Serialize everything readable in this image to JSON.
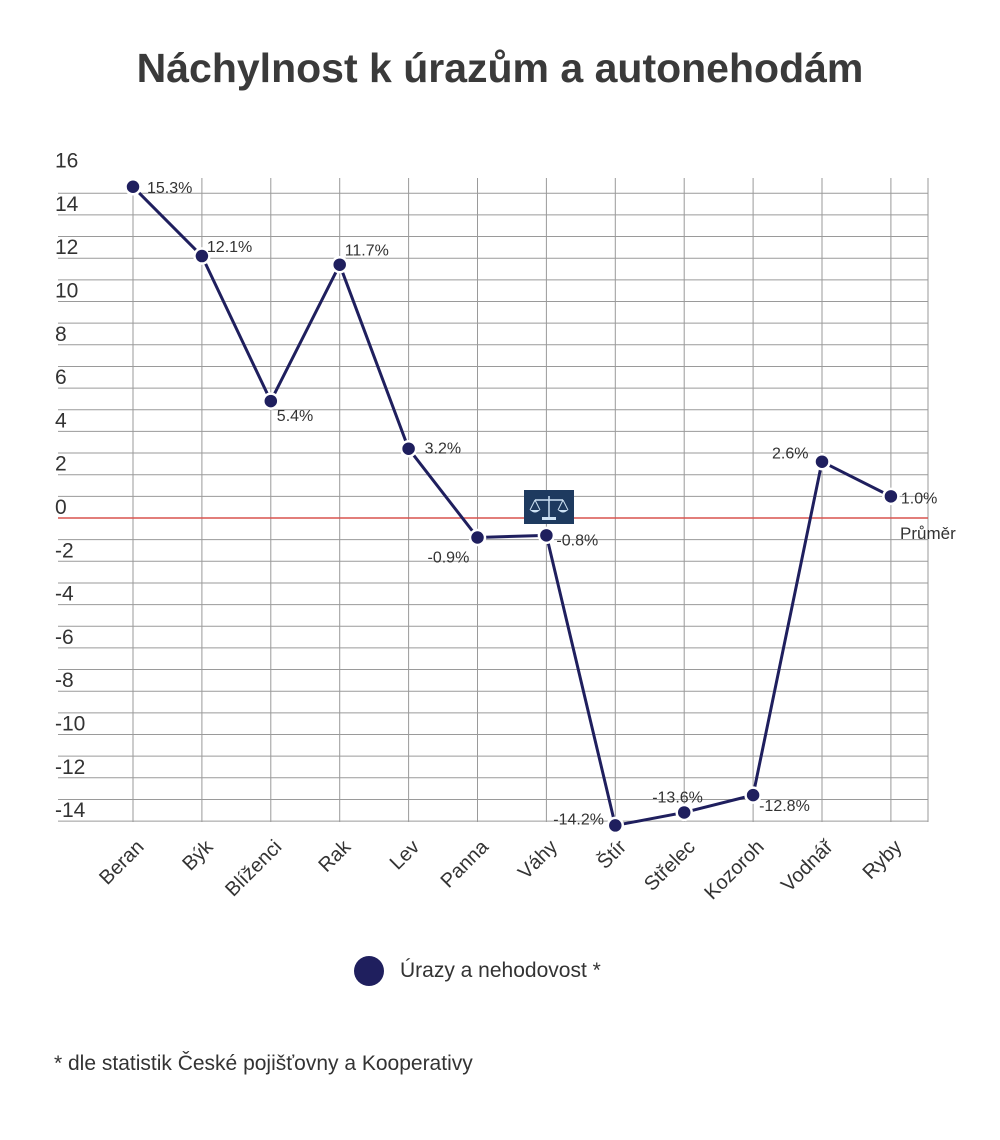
{
  "chart_data": {
    "type": "line",
    "title": "Náchylnost k úrazům a autonehodám",
    "categories": [
      "Beran",
      "Býk",
      "Blíženci",
      "Rak",
      "Lev",
      "Panna",
      "Váhy",
      "Štír",
      "Střelec",
      "Kozoroh",
      "Vodnář",
      "Ryby"
    ],
    "series": [
      {
        "name": "Úrazy a nehodovost *",
        "values": [
          15.3,
          12.1,
          5.4,
          11.7,
          3.2,
          -0.9,
          -0.8,
          -14.2,
          -13.6,
          -12.8,
          2.6,
          1.0
        ],
        "labels": [
          "15.3%",
          "12.1%",
          "5.4%",
          "11.7%",
          "3.2%",
          "-0.9%",
          "-0.8%",
          "-14.2%",
          "-13.6%",
          "-12.8%",
          "2.6%",
          "1.0%"
        ],
        "color": "#1f1f5e"
      }
    ],
    "yticks": [
      16,
      14,
      12,
      10,
      8,
      6,
      4,
      2,
      0,
      -2,
      -4,
      -6,
      -8,
      -10,
      -12,
      -14
    ],
    "ylim": [
      -14.2,
      15.8
    ],
    "grid": true,
    "reference_line": {
      "value": 0,
      "label": "Průměr",
      "color": "#d9534f"
    },
    "legend_position": "bottom"
  },
  "icons": {
    "vahy": "scales-icon"
  },
  "footnote": "* dle statistik České pojišťovny a Kooperativy",
  "colors": {
    "line": "#1f1f5e",
    "grid": "#9a9a9a",
    "reference": "#d9534f"
  }
}
